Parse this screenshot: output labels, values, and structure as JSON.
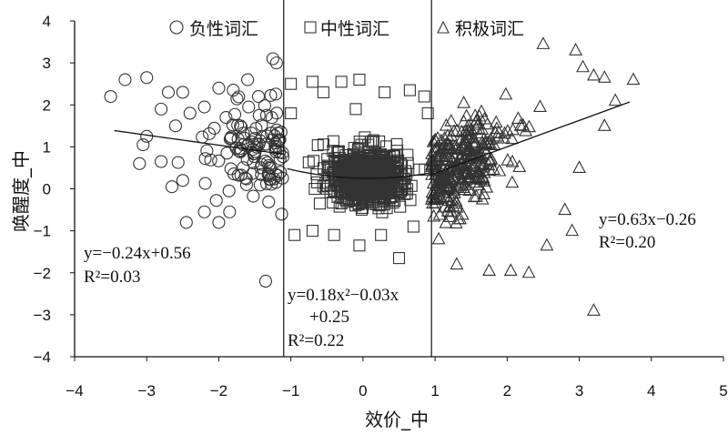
{
  "chart_data": {
    "type": "scatter",
    "xlabel": "效价_中",
    "ylabel": "唤醒度_中",
    "xlim": [
      -4,
      5
    ],
    "ylim": [
      -4,
      4
    ],
    "xticks": [
      "−4",
      "−3",
      "−2",
      "−1",
      "0",
      "1",
      "2",
      "3",
      "4",
      "5"
    ],
    "yticks": [
      "4",
      "3",
      "2",
      "1",
      "0",
      "−1",
      "−2",
      "−3",
      "−4"
    ],
    "dividers": [
      -1.1,
      0.95
    ],
    "series": [
      {
        "name": "负性词汇",
        "marker": "circle",
        "x_range": [
          -3.5,
          -1.1
        ],
        "points": [
          [
            -3.5,
            2.2
          ],
          [
            -3.3,
            2.6
          ],
          [
            -3.0,
            2.65
          ],
          [
            -2.7,
            2.3
          ],
          [
            -2.5,
            2.3
          ],
          [
            -2.8,
            1.9
          ],
          [
            -3.0,
            1.25
          ],
          [
            -3.05,
            1.05
          ],
          [
            -2.8,
            0.65
          ],
          [
            -3.1,
            0.6
          ],
          [
            -2.65,
            0.05
          ],
          [
            -2.5,
            0.2
          ],
          [
            -2.45,
            -0.8
          ],
          [
            -1.35,
            -2.2
          ],
          [
            -1.6,
            2.6
          ],
          [
            -1.45,
            2.2
          ],
          [
            -1.2,
            3.0
          ],
          [
            -1.25,
            3.1
          ],
          [
            -2.0,
            2.4
          ],
          [
            -1.8,
            2.35
          ],
          [
            -2.2,
            -0.55
          ],
          [
            -2.0,
            -0.8
          ],
          [
            -1.85,
            -0.55
          ],
          [
            -2.6,
            1.5
          ],
          [
            -2.4,
            1.8
          ],
          [
            -2.2,
            1.95
          ],
          [
            -1.9,
            1.7
          ],
          [
            -1.7,
            1.5
          ],
          [
            -1.5,
            1.2
          ],
          [
            -1.3,
            0.3
          ]
        ],
        "scatter_n": 110,
        "trend": {
          "fn": "linear",
          "a": -0.24,
          "b": 0.56,
          "x_from": -3.45,
          "x_to": -1.1
        },
        "equation": "y=−0.24x+0.56",
        "r2": "R²=0.03"
      },
      {
        "name": "中性词汇",
        "marker": "square",
        "x_range": [
          -1.05,
          0.95
        ],
        "points": [
          [
            -1.0,
            2.5
          ],
          [
            -0.7,
            2.55
          ],
          [
            -0.55,
            2.3
          ],
          [
            -0.3,
            2.55
          ],
          [
            -0.05,
            2.6
          ],
          [
            0.3,
            2.3
          ],
          [
            0.65,
            2.35
          ],
          [
            0.85,
            2.2
          ],
          [
            -0.95,
            -1.1
          ],
          [
            -0.7,
            -1.0
          ],
          [
            -0.4,
            -1.1
          ],
          [
            -0.05,
            -1.35
          ],
          [
            0.5,
            -1.65
          ],
          [
            0.25,
            -1.1
          ],
          [
            0.7,
            -0.9
          ],
          [
            -1.0,
            1.8
          ],
          [
            0.9,
            1.8
          ],
          [
            -0.1,
            1.9
          ]
        ],
        "scatter_n": 700,
        "trend": {
          "fn": "quadratic",
          "a": 0.18,
          "b": -0.03,
          "c": 0.25,
          "x_from": -1.05,
          "x_to": 0.95
        },
        "equation": "y=0.18x²−0.03x",
        "equation_line2": "+0.25",
        "r2": "R²=0.22"
      },
      {
        "name": "积极词汇",
        "marker": "triangle",
        "x_range": [
          0.95,
          3.75
        ],
        "points": [
          [
            2.5,
            3.45
          ],
          [
            2.95,
            3.3
          ],
          [
            3.05,
            2.9
          ],
          [
            3.2,
            2.7
          ],
          [
            3.35,
            2.65
          ],
          [
            3.75,
            2.6
          ],
          [
            3.2,
            -2.9
          ],
          [
            2.55,
            -1.35
          ],
          [
            2.3,
            -2.0
          ],
          [
            2.05,
            -1.95
          ],
          [
            1.75,
            -1.95
          ],
          [
            1.3,
            -1.8
          ],
          [
            1.05,
            -1.2
          ],
          [
            2.9,
            -1.0
          ],
          [
            3.5,
            2.1
          ],
          [
            3.35,
            1.5
          ],
          [
            3.0,
            0.5
          ],
          [
            2.8,
            -0.5
          ]
        ],
        "scatter_n": 320,
        "trend": {
          "fn": "linear",
          "a": 0.63,
          "b": -0.26,
          "x_from": 0.95,
          "x_to": 3.7
        },
        "equation": "y=0.63x−0.26",
        "r2": "R²=0.20"
      }
    ],
    "grid": false,
    "legend": "top, inline above each region"
  }
}
